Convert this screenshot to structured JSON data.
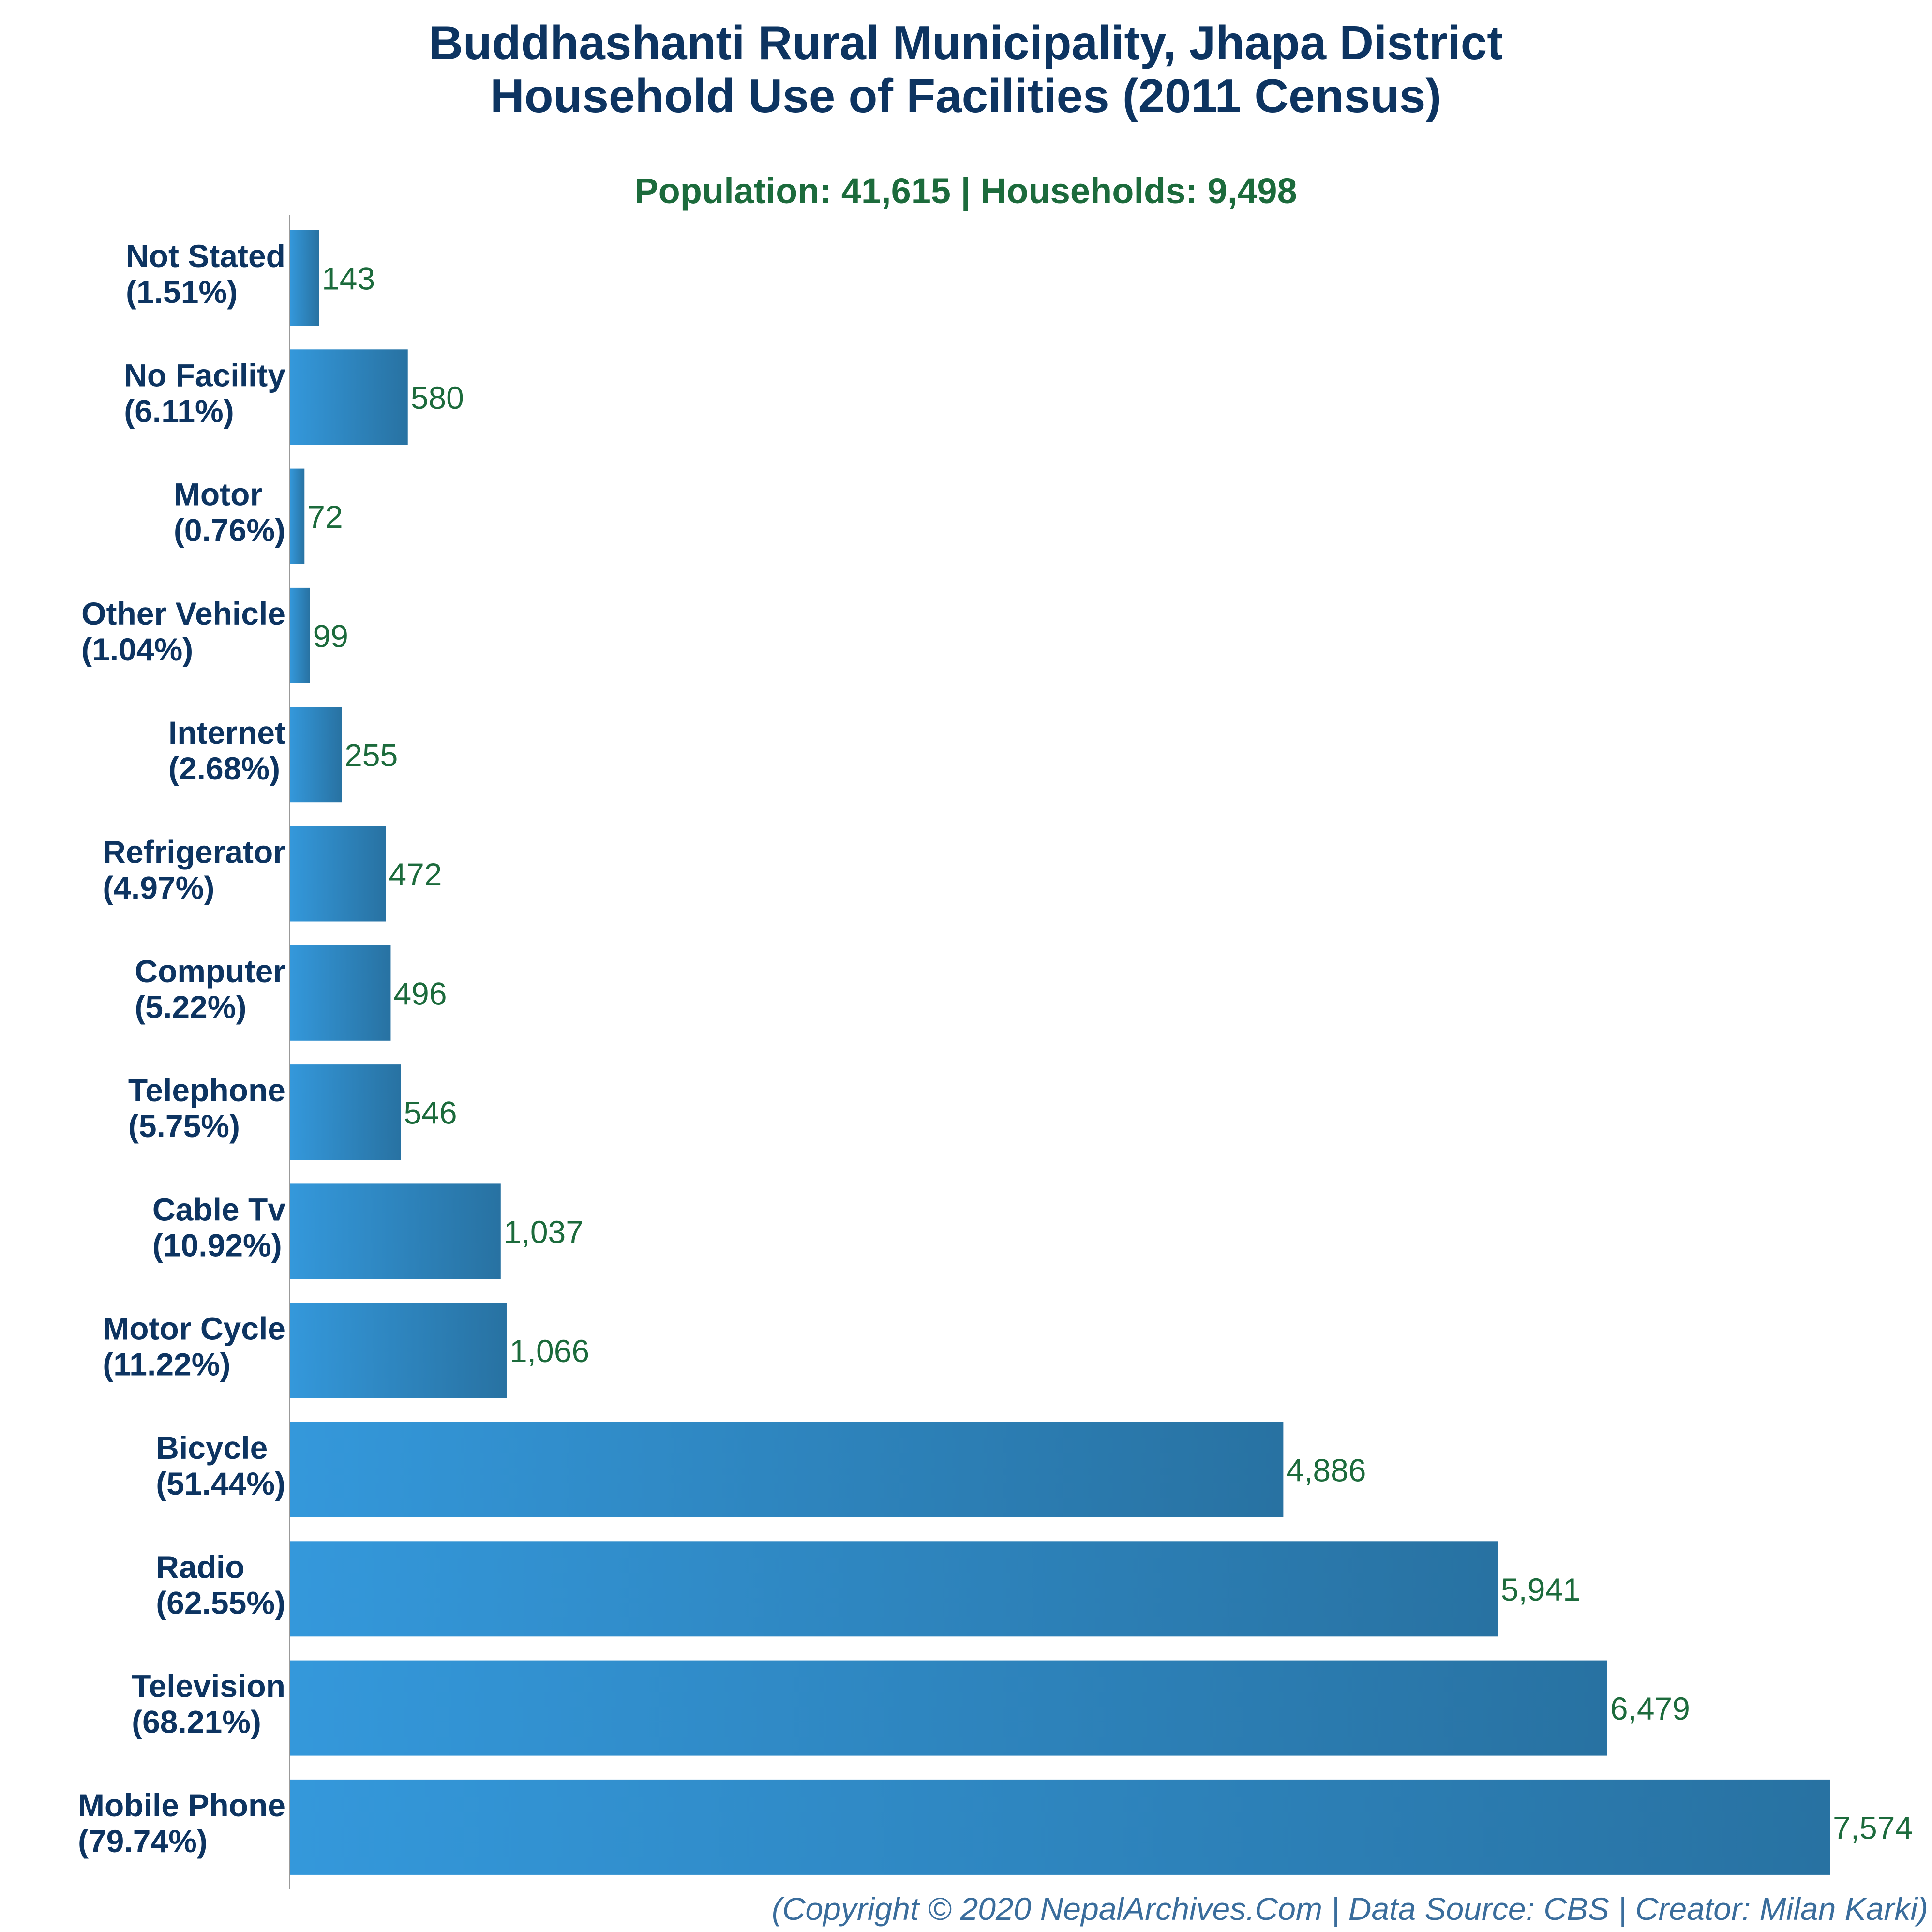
{
  "chart_data": {
    "type": "bar",
    "orientation": "horizontal",
    "title_lines": [
      "Buddhashanti Rural Municipality, Jhapa District",
      "Household Use of Facilities (2011 Census)"
    ],
    "subtitle": "Population: 41,615 | Households: 9,498",
    "footer": "(Copyright © 2020 NepalArchives.Com | Data Source: CBS | Creator: Milan Karki)",
    "categories": [
      "Not Stated",
      "No Facility",
      "Motor",
      "Other Vehicle",
      "Internet",
      "Refrigerator",
      "Computer",
      "Telephone",
      "Cable Tv",
      "Motor Cycle",
      "Bicycle",
      "Radio",
      "Television",
      "Mobile Phone"
    ],
    "percent_labels": [
      "(1.51%)",
      "(6.11%)",
      "(0.76%)",
      "(1.04%)",
      "(2.68%)",
      "(4.97%)",
      "(5.22%)",
      "(5.75%)",
      "(10.92%)",
      "(11.22%)",
      "(51.44%)",
      "(62.55%)",
      "(68.21%)",
      "(79.74%)"
    ],
    "values": [
      143,
      580,
      72,
      99,
      255,
      472,
      496,
      546,
      1037,
      1066,
      4886,
      5941,
      6479,
      7574
    ],
    "value_labels": [
      "143",
      "580",
      "72",
      "99",
      "255",
      "472",
      "496",
      "546",
      "1,037",
      "1,066",
      "4,886",
      "5,941",
      "6,479",
      "7,574"
    ],
    "xlim": [
      0,
      7574
    ],
    "grid": false,
    "legend": "none",
    "colors": {
      "bar_light": "#3498db",
      "bar_dark": "#2872a2",
      "title": "#0d3461",
      "subtitle": "#1c6b3c",
      "value_label": "#1c6b3c",
      "footer": "#3a6d9c",
      "axis": "#999999"
    }
  }
}
